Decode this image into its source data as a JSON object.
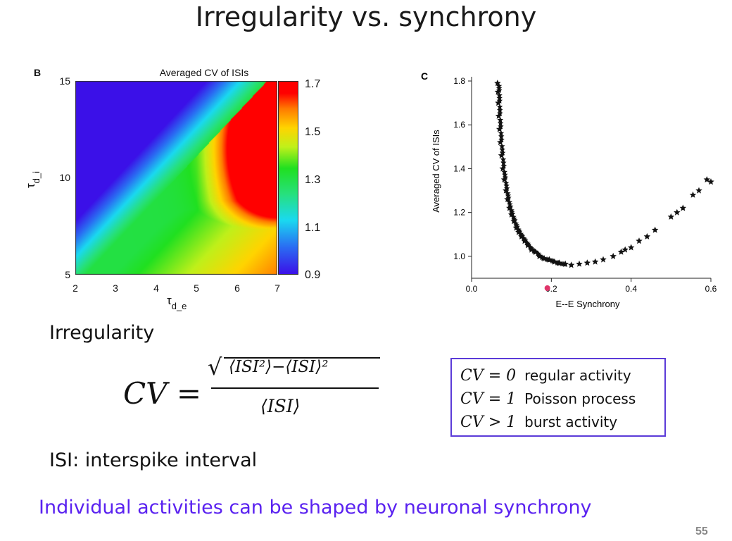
{
  "slide": {
    "title": "Irregularity vs. synchrony",
    "irregularity_heading": "Irregularity",
    "formula": {
      "lhs": "CV =",
      "numerator": "⟨ISI²⟩−⟨ISI⟩²",
      "denominator": "⟨ISI⟩"
    },
    "isi_definition": "ISI: interspike interval",
    "definitions": [
      {
        "math": "CV = 0",
        "text": "regular activity"
      },
      {
        "math": "CV = 1",
        "text": "Poisson process"
      },
      {
        "math": "CV > 1",
        "text": "burst activity"
      }
    ],
    "bottom_statement": "Individual activities can be shaped by neuronal synchrony",
    "page_number": "55"
  },
  "panel_b": {
    "letter": "B",
    "title": "Averaged CV of ISIs",
    "x_ticks": [
      "2",
      "3",
      "4",
      "5",
      "6",
      "7"
    ],
    "y_ticks": [
      "15",
      "10",
      "5"
    ],
    "x_symbol": "τ",
    "x_subscript": "d_e",
    "y_symbol": "τ",
    "y_subscript": "d_i",
    "colorbar_ticks": [
      "1.7",
      "1.5",
      "1.3",
      "1.1",
      "0.9"
    ]
  },
  "panel_c": {
    "letter": "C",
    "xlabel": "E--E Synchrony",
    "ylabel": "Averaged CV of ISIs",
    "x_ticks": [
      "0.0",
      "0.2",
      "0.4",
      "0.6"
    ],
    "y_ticks": [
      "1.8",
      "1.6",
      "1.4",
      "1.2",
      "1.0"
    ]
  },
  "chart_data": [
    {
      "type": "heatmap",
      "title": "Averaged CV of ISIs",
      "xlabel": "τd_e",
      "ylabel": "τd_i",
      "xlim": [
        2,
        7
      ],
      "ylim": [
        5,
        15
      ],
      "color_range": [
        0.9,
        1.7
      ],
      "colorbar_ticks": [
        1.7,
        1.5,
        1.3,
        1.1,
        0.9
      ],
      "grid": false
    },
    {
      "type": "scatter",
      "marker": "star",
      "xlabel": "E--E Synchrony",
      "ylabel": "Averaged CV of ISIs",
      "xlim": [
        0.0,
        0.6
      ],
      "ylim": [
        0.9,
        1.8
      ],
      "x": [
        0.065,
        0.066,
        0.067,
        0.068,
        0.07,
        0.072,
        0.075,
        0.078,
        0.082,
        0.086,
        0.09,
        0.095,
        0.1,
        0.106,
        0.112,
        0.118,
        0.125,
        0.133,
        0.141,
        0.15,
        0.16,
        0.17,
        0.182,
        0.195,
        0.208,
        0.22,
        0.235,
        0.25,
        0.27,
        0.29,
        0.31,
        0.33,
        0.355,
        0.375,
        0.385,
        0.4,
        0.42,
        0.44,
        0.46,
        0.5,
        0.515,
        0.53,
        0.555,
        0.57,
        0.59,
        0.6
      ],
      "y": [
        1.79,
        1.75,
        1.7,
        1.64,
        1.58,
        1.52,
        1.46,
        1.4,
        1.35,
        1.3,
        1.26,
        1.22,
        1.19,
        1.16,
        1.13,
        1.11,
        1.09,
        1.07,
        1.05,
        1.03,
        1.02,
        1.0,
        0.99,
        0.985,
        0.975,
        0.97,
        0.965,
        0.96,
        0.965,
        0.97,
        0.975,
        0.985,
        1.0,
        1.02,
        1.03,
        1.04,
        1.07,
        1.09,
        1.12,
        1.18,
        1.2,
        1.22,
        1.28,
        1.3,
        1.35,
        1.34
      ]
    }
  ]
}
